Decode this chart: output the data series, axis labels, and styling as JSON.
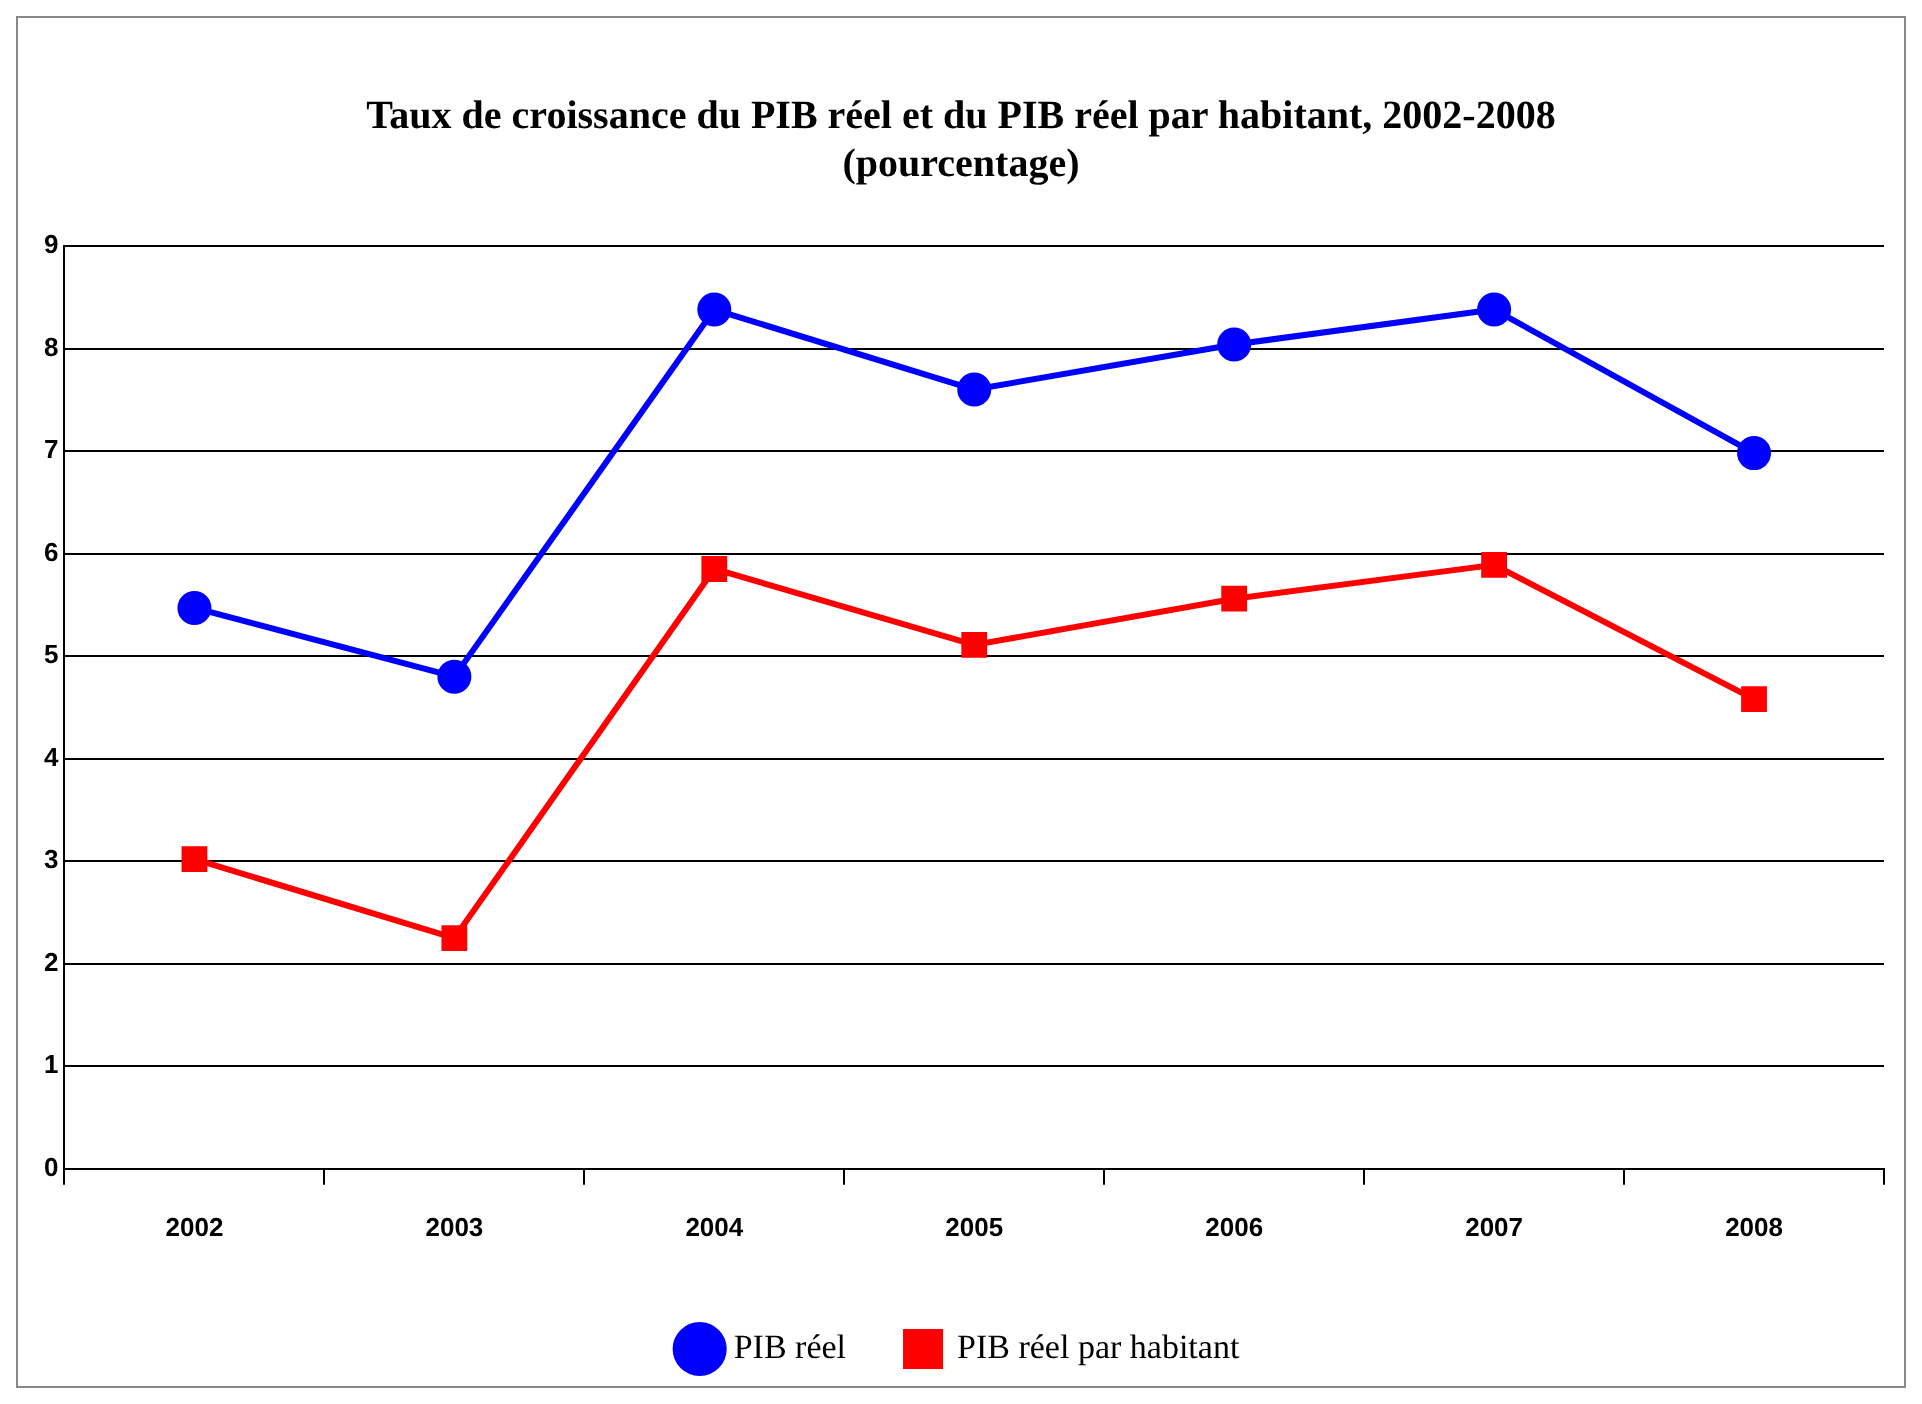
{
  "chart_data": {
    "type": "line",
    "title": "Taux de croissance du PIB réel et du PIB réel par habitant, 2002-2008",
    "subtitle": "(pourcentage)",
    "categories": [
      "2002",
      "2003",
      "2004",
      "2005",
      "2006",
      "2007",
      "2008"
    ],
    "series": [
      {
        "name": "PIB réel",
        "color": "#0000ff",
        "marker": "circle",
        "values": [
          5.47,
          4.8,
          8.38,
          7.6,
          8.04,
          8.38,
          6.98
        ]
      },
      {
        "name": "PIB réel par habitant",
        "color": "#ff0000",
        "marker": "square",
        "values": [
          3.02,
          2.25,
          5.85,
          5.11,
          5.56,
          5.89,
          4.58
        ]
      }
    ],
    "ylim": [
      0,
      9
    ],
    "yticks": [
      0,
      1,
      2,
      3,
      4,
      5,
      6,
      7,
      8,
      9
    ],
    "grid": "y",
    "legend": "bottom",
    "line_style": "solid"
  }
}
